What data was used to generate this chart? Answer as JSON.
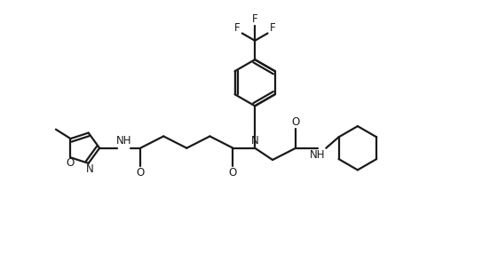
{
  "bg_color": "#ffffff",
  "line_color": "#1a1a1a",
  "line_width": 1.6,
  "font_size": 8.5,
  "fig_width": 5.61,
  "fig_height": 2.86,
  "dpi": 100,
  "xlim": [
    0,
    11
  ],
  "ylim": [
    0,
    6
  ]
}
